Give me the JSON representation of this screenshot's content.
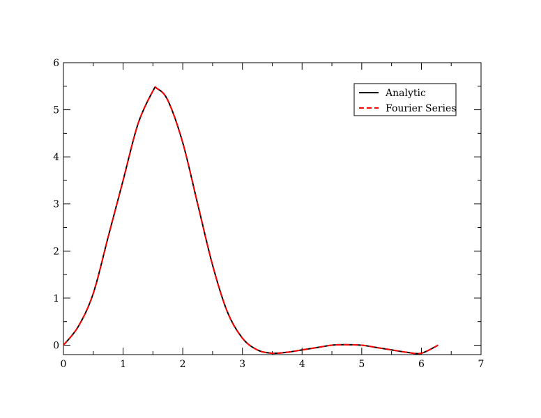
{
  "chart_data": {
    "type": "line",
    "title": "",
    "xlabel": "",
    "ylabel": "",
    "xlim": [
      0,
      7
    ],
    "ylim": [
      -0.2,
      6
    ],
    "x_ticks": [
      0,
      1,
      2,
      3,
      4,
      5,
      6,
      7
    ],
    "y_ticks": [
      0,
      1,
      2,
      3,
      4,
      5,
      6
    ],
    "x_tick_labels": [
      "0",
      "1",
      "2",
      "3",
      "4",
      "5",
      "6",
      "7"
    ],
    "y_tick_labels": [
      "0",
      "1",
      "2",
      "3",
      "4",
      "5",
      "6"
    ],
    "grid": false,
    "legend_position": "top-right",
    "series": [
      {
        "name": "Analytic",
        "color": "#000000",
        "style": "solid",
        "x": [
          0,
          0.25,
          0.5,
          0.75,
          1.0,
          1.25,
          1.5,
          1.57,
          1.75,
          2.0,
          2.25,
          2.5,
          2.75,
          3.0,
          3.25,
          3.5,
          3.75,
          4.0,
          4.25,
          4.5,
          4.71,
          5.0,
          5.25,
          5.5,
          5.75,
          6.0,
          6.28
        ],
        "y": [
          0.0,
          0.4,
          1.1,
          2.3,
          3.5,
          4.7,
          5.4,
          5.45,
          5.2,
          4.3,
          3.0,
          1.7,
          0.7,
          0.15,
          -0.1,
          -0.17,
          -0.15,
          -0.1,
          -0.05,
          0.0,
          0.01,
          0.0,
          -0.05,
          -0.1,
          -0.15,
          -0.17,
          0.0
        ]
      },
      {
        "name": "Fourier Series",
        "color": "#ff0000",
        "style": "dashed",
        "x": [
          0,
          0.25,
          0.5,
          0.75,
          1.0,
          1.25,
          1.5,
          1.57,
          1.75,
          2.0,
          2.25,
          2.5,
          2.75,
          3.0,
          3.25,
          3.5,
          3.75,
          4.0,
          4.25,
          4.5,
          4.71,
          5.0,
          5.25,
          5.5,
          5.75,
          6.0,
          6.28
        ],
        "y": [
          0.0,
          0.4,
          1.1,
          2.3,
          3.5,
          4.7,
          5.4,
          5.45,
          5.2,
          4.3,
          3.0,
          1.7,
          0.7,
          0.15,
          -0.1,
          -0.17,
          -0.15,
          -0.1,
          -0.05,
          0.0,
          0.01,
          0.0,
          -0.05,
          -0.1,
          -0.15,
          -0.17,
          0.0
        ]
      }
    ]
  }
}
